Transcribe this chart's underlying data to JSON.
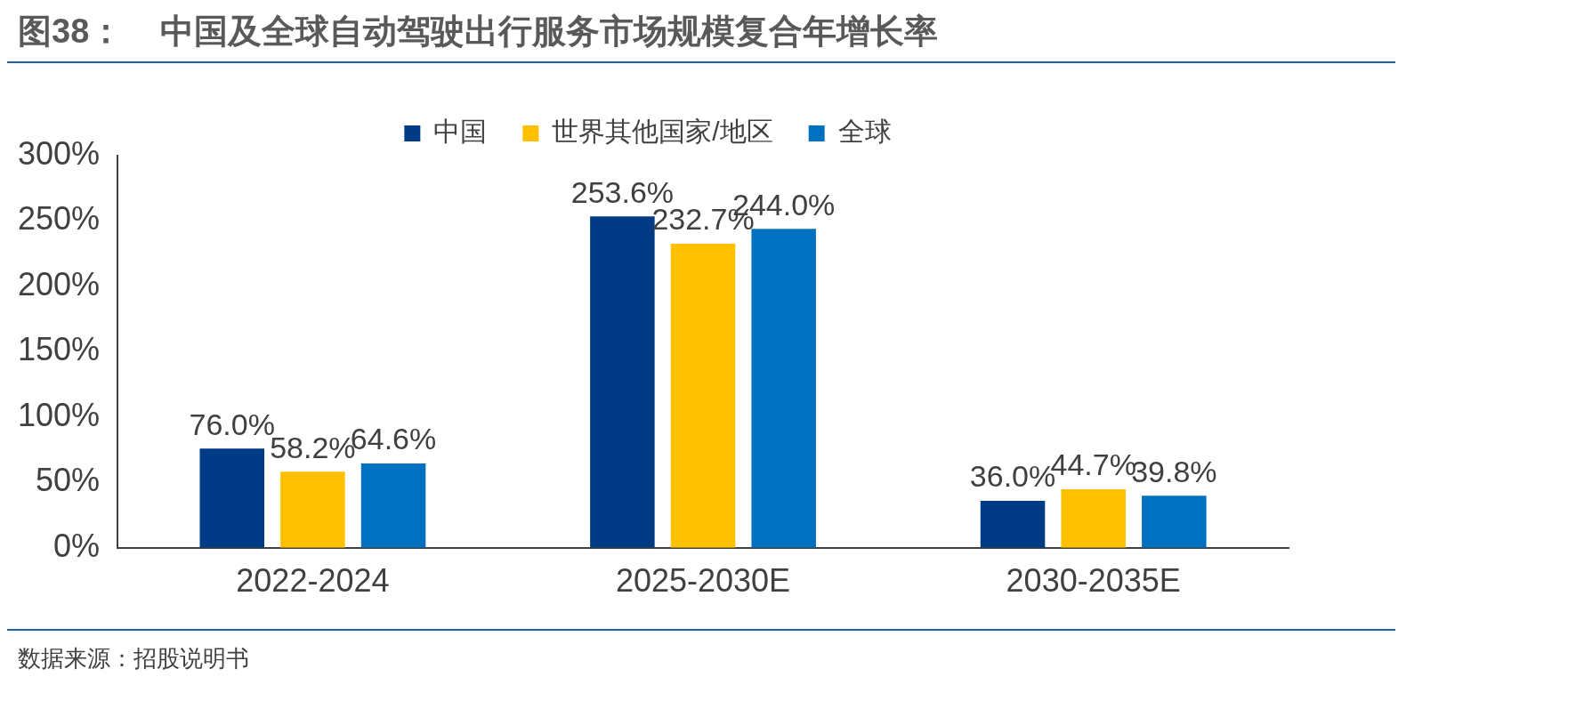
{
  "chart_data": {
    "type": "bar",
    "title": "图38：    中国及全球自动驾驶出行服务市场规模复合年增长率",
    "categories": [
      "2022-2024",
      "2025-2030E",
      "2030-2035E"
    ],
    "series": [
      {
        "name": "中国",
        "color": "#003b86",
        "values": [
          76.0,
          253.6,
          36.0
        ],
        "value_labels": [
          "76.0%",
          "253.6%",
          "36.0%"
        ]
      },
      {
        "name": "世界其他国家/地区",
        "color": "#ffc000",
        "values": [
          58.2,
          232.7,
          44.7
        ],
        "value_labels": [
          "58.2%",
          "232.7%",
          "44.7%"
        ]
      },
      {
        "name": "全球",
        "color": "#0070c0",
        "values": [
          64.6,
          244.0,
          39.8
        ],
        "value_labels": [
          "64.6%",
          "244.0%",
          "39.8%"
        ]
      }
    ],
    "ylim": [
      0,
      300
    ],
    "yticks": [
      {
        "value": 0,
        "label": "0%"
      },
      {
        "value": 50,
        "label": "50%"
      },
      {
        "value": 100,
        "label": "100%"
      },
      {
        "value": 150,
        "label": "150%"
      },
      {
        "value": 200,
        "label": "200%"
      },
      {
        "value": 250,
        "label": "250%"
      },
      {
        "value": 300,
        "label": "300%"
      }
    ],
    "grid": false,
    "legend": "top",
    "annotations": [
      "数据来源：招股说明书"
    ]
  }
}
